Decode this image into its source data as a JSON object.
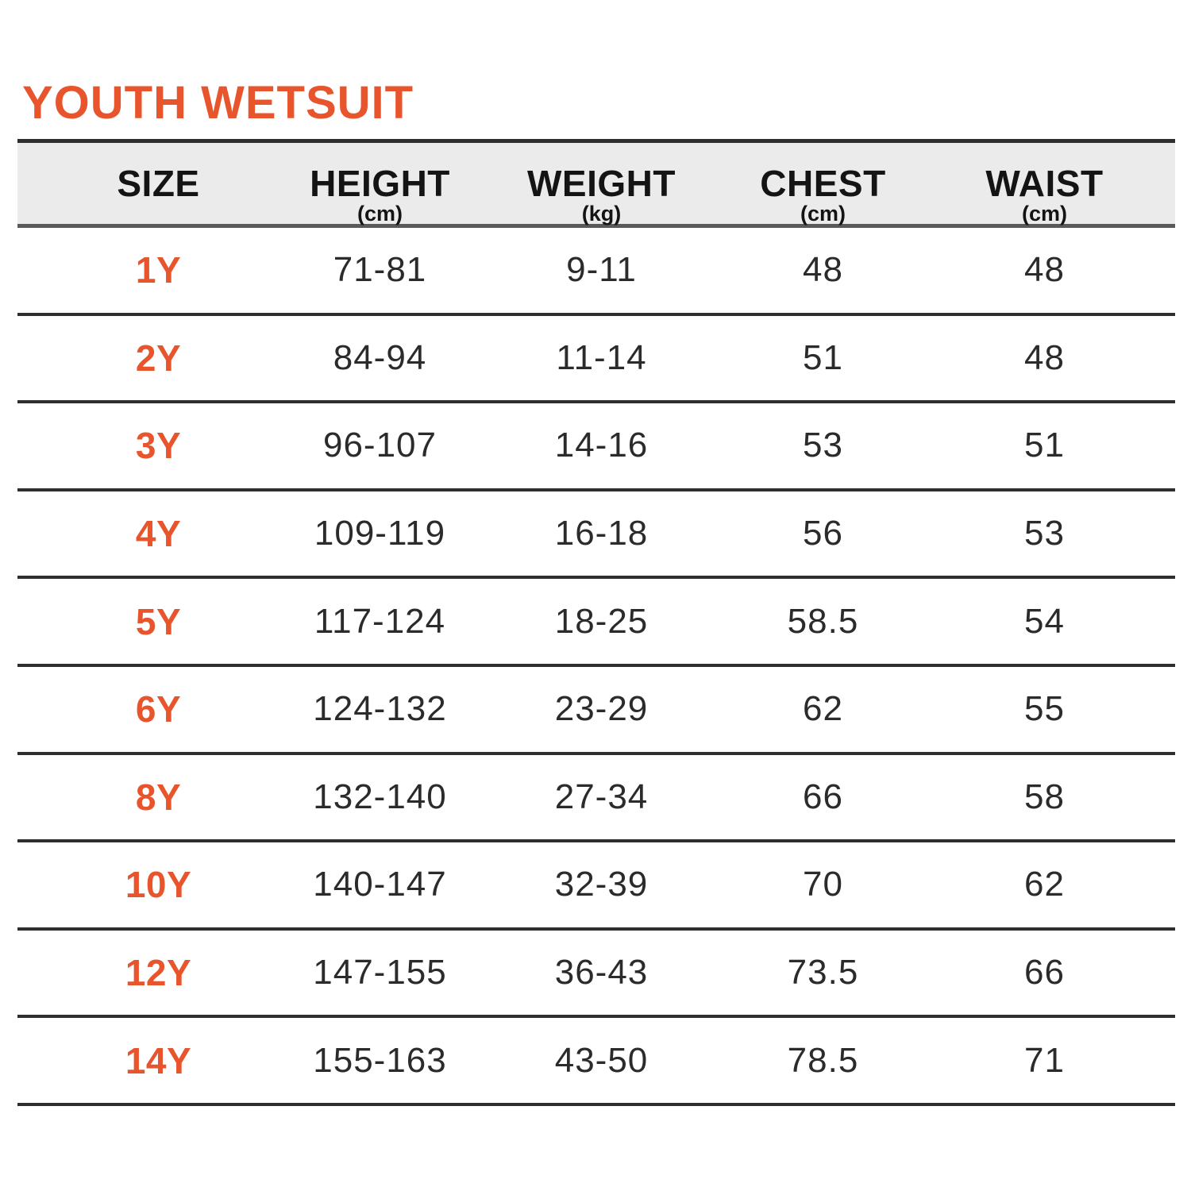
{
  "page": {
    "title": "YOUTH WETSUIT"
  },
  "colors": {
    "accent": "#E8552D",
    "header_bg": "#EBEBEB",
    "header_text": "#141414",
    "text": "#2B2B2B",
    "line_dark": "#2E2E2E",
    "line_mid": "#5A5A5A"
  },
  "table": {
    "columns": [
      {
        "key": "size",
        "label": "SIZE",
        "unit": ""
      },
      {
        "key": "height",
        "label": "HEIGHT",
        "unit": "(cm)"
      },
      {
        "key": "weight",
        "label": "WEIGHT",
        "unit": "(kg)"
      },
      {
        "key": "chest",
        "label": "CHEST",
        "unit": "(cm)"
      },
      {
        "key": "waist",
        "label": "WAIST",
        "unit": "(cm)"
      }
    ],
    "rows": [
      {
        "size": "1Y",
        "height": "71-81",
        "weight": "9-11",
        "chest": "48",
        "waist": "48"
      },
      {
        "size": "2Y",
        "height": "84-94",
        "weight": "11-14",
        "chest": "51",
        "waist": "48"
      },
      {
        "size": "3Y",
        "height": "96-107",
        "weight": "14-16",
        "chest": "53",
        "waist": "51"
      },
      {
        "size": "4Y",
        "height": "109-119",
        "weight": "16-18",
        "chest": "56",
        "waist": "53"
      },
      {
        "size": "5Y",
        "height": "117-124",
        "weight": "18-25",
        "chest": "58.5",
        "waist": "54"
      },
      {
        "size": "6Y",
        "height": "124-132",
        "weight": "23-29",
        "chest": "62",
        "waist": "55"
      },
      {
        "size": "8Y",
        "height": "132-140",
        "weight": "27-34",
        "chest": "66",
        "waist": "58"
      },
      {
        "size": "10Y",
        "height": "140-147",
        "weight": "32-39",
        "chest": "70",
        "waist": "62"
      },
      {
        "size": "12Y",
        "height": "147-155",
        "weight": "36-43",
        "chest": "73.5",
        "waist": "66"
      },
      {
        "size": "14Y",
        "height": "155-163",
        "weight": "43-50",
        "chest": "78.5",
        "waist": "71"
      }
    ]
  },
  "chart_data": {
    "type": "table",
    "title": "YOUTH WETSUIT",
    "columns": [
      "SIZE",
      "HEIGHT (cm)",
      "WEIGHT (kg)",
      "CHEST (cm)",
      "WAIST (cm)"
    ],
    "rows": [
      [
        "1Y",
        "71-81",
        "9-11",
        "48",
        "48"
      ],
      [
        "2Y",
        "84-94",
        "11-14",
        "51",
        "48"
      ],
      [
        "3Y",
        "96-107",
        "14-16",
        "53",
        "51"
      ],
      [
        "4Y",
        "109-119",
        "16-18",
        "56",
        "53"
      ],
      [
        "5Y",
        "117-124",
        "18-25",
        "58.5",
        "54"
      ],
      [
        "6Y",
        "124-132",
        "23-29",
        "62",
        "55"
      ],
      [
        "8Y",
        "132-140",
        "27-34",
        "66",
        "58"
      ],
      [
        "10Y",
        "140-147",
        "32-39",
        "70",
        "62"
      ],
      [
        "12Y",
        "147-155",
        "36-43",
        "73.5",
        "66"
      ],
      [
        "14Y",
        "155-163",
        "43-50",
        "78.5",
        "71"
      ]
    ]
  }
}
